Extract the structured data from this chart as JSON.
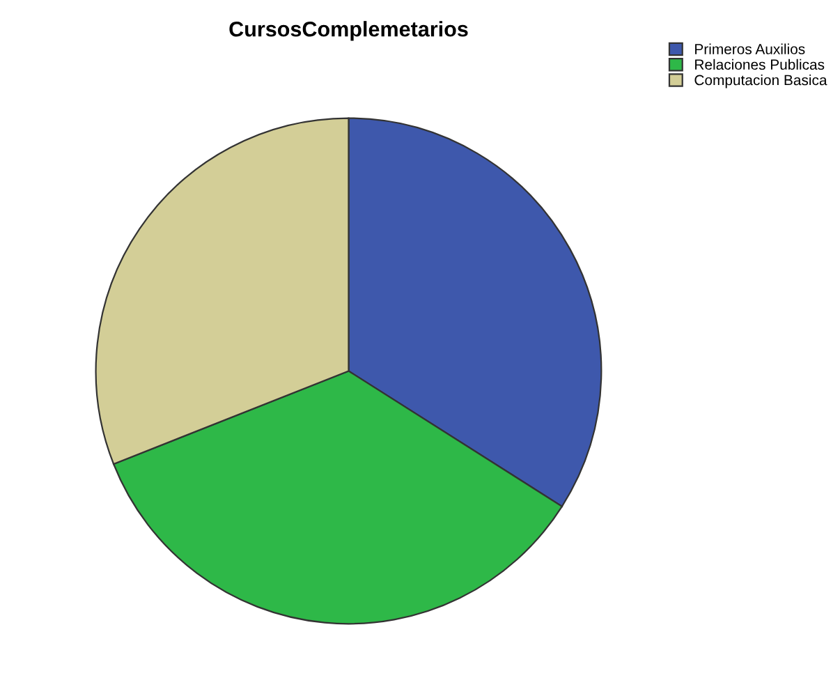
{
  "chart_data": {
    "type": "pie",
    "title": "CursosComplemetarios",
    "categories": [
      "Primeros Auxilios",
      "Relaciones Publicas",
      "Computacion Basica"
    ],
    "values": [
      34,
      35,
      31
    ],
    "colors": [
      "#3e58ac",
      "#2eb848",
      "#d3ce97"
    ],
    "legend": "top right"
  }
}
